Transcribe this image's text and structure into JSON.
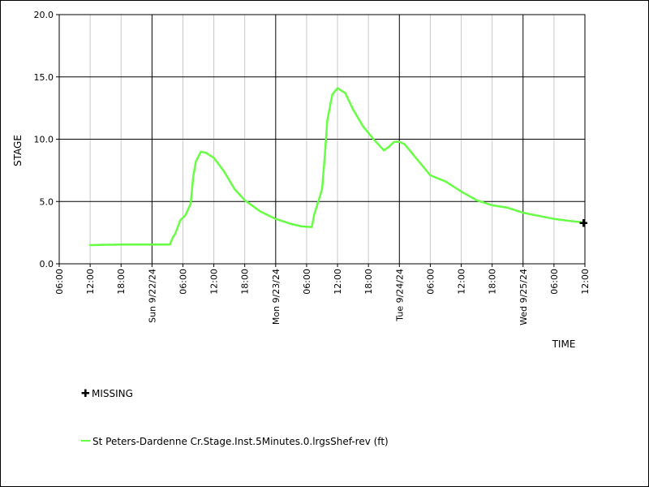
{
  "chart_data": {
    "type": "line",
    "xlabel": "TIME",
    "ylabel": "STAGE",
    "ylim": [
      0,
      20
    ],
    "xlim": [
      "2024-09-21 06:00",
      "2024-09-25 12:00"
    ],
    "grid": true,
    "y_ticks": [
      "0.0",
      "5.0",
      "10.0",
      "15.0",
      "20.0"
    ],
    "x_ticks": [
      {
        "t": "2024-09-21 06:00",
        "label": "06:00",
        "major": false
      },
      {
        "t": "2024-09-21 12:00",
        "label": "12:00",
        "major": false
      },
      {
        "t": "2024-09-21 18:00",
        "label": "18:00",
        "major": false
      },
      {
        "t": "2024-09-22 00:00",
        "label": "Sun 9/22/24",
        "major": true
      },
      {
        "t": "2024-09-22 06:00",
        "label": "06:00",
        "major": false
      },
      {
        "t": "2024-09-22 12:00",
        "label": "12:00",
        "major": false
      },
      {
        "t": "2024-09-22 18:00",
        "label": "18:00",
        "major": false
      },
      {
        "t": "2024-09-23 00:00",
        "label": "Mon 9/23/24",
        "major": true
      },
      {
        "t": "2024-09-23 06:00",
        "label": "06:00",
        "major": false
      },
      {
        "t": "2024-09-23 12:00",
        "label": "12:00",
        "major": false
      },
      {
        "t": "2024-09-23 18:00",
        "label": "18:00",
        "major": false
      },
      {
        "t": "2024-09-24 00:00",
        "label": "Tue 9/24/24",
        "major": true
      },
      {
        "t": "2024-09-24 06:00",
        "label": "06:00",
        "major": false
      },
      {
        "t": "2024-09-24 12:00",
        "label": "12:00",
        "major": false
      },
      {
        "t": "2024-09-24 18:00",
        "label": "18:00",
        "major": false
      },
      {
        "t": "2024-09-25 00:00",
        "label": "Wed 9/25/24",
        "major": true
      },
      {
        "t": "2024-09-25 06:00",
        "label": "06:00",
        "major": false
      },
      {
        "t": "2024-09-25 12:00",
        "label": "12:00",
        "major": false
      }
    ],
    "series": [
      {
        "name": "St Peters-Dardenne Cr.Stage.Inst.5Minutes.0.lrgsShef-rev (ft)",
        "color": "#66ff44",
        "points": [
          [
            "2024-09-21 12:00",
            1.5
          ],
          [
            "2024-09-21 18:00",
            1.55
          ],
          [
            "2024-09-22 00:00",
            1.55
          ],
          [
            "2024-09-22 03:30",
            1.55
          ],
          [
            "2024-09-22 04:00",
            2.1
          ],
          [
            "2024-09-22 04:30",
            2.4
          ],
          [
            "2024-09-22 05:30",
            3.5
          ],
          [
            "2024-09-22 06:30",
            3.9
          ],
          [
            "2024-09-22 07:30",
            4.8
          ],
          [
            "2024-09-22 08:00",
            7.0
          ],
          [
            "2024-09-22 08:30",
            8.2
          ],
          [
            "2024-09-22 09:30",
            9.0
          ],
          [
            "2024-09-22 10:30",
            8.9
          ],
          [
            "2024-09-22 12:00",
            8.5
          ],
          [
            "2024-09-22 14:00",
            7.4
          ],
          [
            "2024-09-22 16:00",
            6.0
          ],
          [
            "2024-09-22 18:00",
            5.1
          ],
          [
            "2024-09-22 21:00",
            4.2
          ],
          [
            "2024-09-23 00:00",
            3.6
          ],
          [
            "2024-09-23 03:00",
            3.2
          ],
          [
            "2024-09-23 05:00",
            3.0
          ],
          [
            "2024-09-23 07:00",
            2.95
          ],
          [
            "2024-09-23 07:30",
            4.0
          ],
          [
            "2024-09-23 08:30",
            5.3
          ],
          [
            "2024-09-23 09:00",
            6.0
          ],
          [
            "2024-09-23 09:30",
            8.5
          ],
          [
            "2024-09-23 10:00",
            11.5
          ],
          [
            "2024-09-23 11:00",
            13.6
          ],
          [
            "2024-09-23 12:00",
            14.1
          ],
          [
            "2024-09-23 13:30",
            13.7
          ],
          [
            "2024-09-23 15:00",
            12.4
          ],
          [
            "2024-09-23 17:00",
            11.0
          ],
          [
            "2024-09-23 19:00",
            10.0
          ],
          [
            "2024-09-23 21:00",
            9.1
          ],
          [
            "2024-09-23 22:00",
            9.4
          ],
          [
            "2024-09-23 23:00",
            9.8
          ],
          [
            "2024-09-24 00:00",
            9.8
          ],
          [
            "2024-09-24 01:00",
            9.6
          ],
          [
            "2024-09-24 03:00",
            8.6
          ],
          [
            "2024-09-24 06:00",
            7.1
          ],
          [
            "2024-09-24 09:00",
            6.6
          ],
          [
            "2024-09-24 12:00",
            5.8
          ],
          [
            "2024-09-24 15:00",
            5.1
          ],
          [
            "2024-09-24 18:00",
            4.7
          ],
          [
            "2024-09-24 21:00",
            4.5
          ],
          [
            "2024-09-25 00:00",
            4.1
          ],
          [
            "2024-09-25 06:00",
            3.6
          ],
          [
            "2024-09-25 11:45",
            3.3
          ]
        ]
      }
    ],
    "missing": [
      [
        "2024-09-25 11:45",
        3.3
      ]
    ],
    "legend": {
      "placement": "below",
      "missing_label": "MISSING"
    }
  }
}
